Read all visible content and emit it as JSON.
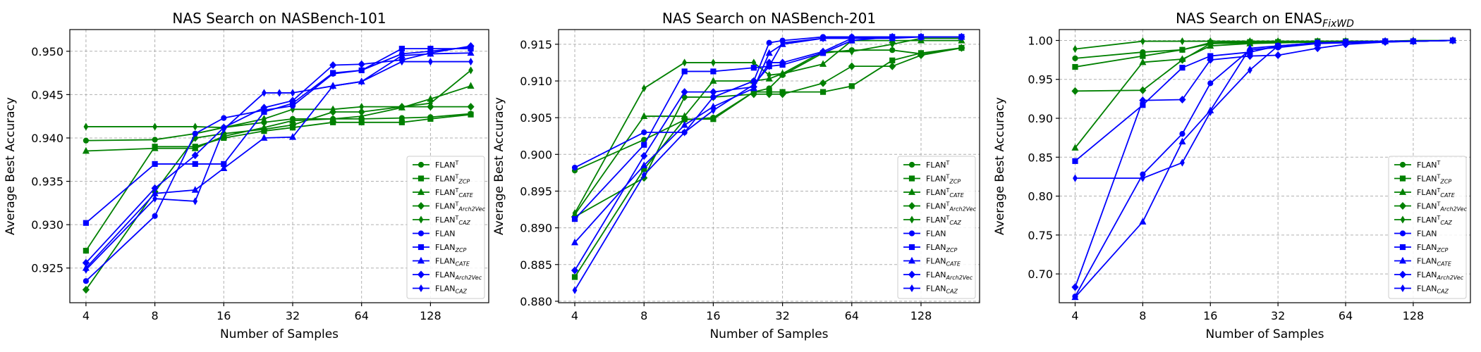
{
  "colors": {
    "green": "#008000",
    "blue": "#0000ff",
    "grid": "#b0b0b0"
  },
  "legend": [
    {
      "base": "FLAN",
      "sup": "T",
      "sub": "",
      "color": "green",
      "marker": "circle"
    },
    {
      "base": "FLAN",
      "sup": "T",
      "sub": "ZCP",
      "color": "green",
      "marker": "square"
    },
    {
      "base": "FLAN",
      "sup": "T",
      "sub": "CATE",
      "color": "green",
      "marker": "triangle"
    },
    {
      "base": "FLAN",
      "sup": "T",
      "sub": "Arch2Vec",
      "color": "green",
      "marker": "diamond"
    },
    {
      "base": "FLAN",
      "sup": "T",
      "sub": "CAZ",
      "color": "green",
      "marker": "thin-diamond"
    },
    {
      "base": "FLAN",
      "sup": "",
      "sub": "",
      "color": "blue",
      "marker": "circle"
    },
    {
      "base": "FLAN",
      "sup": "",
      "sub": "ZCP",
      "color": "blue",
      "marker": "square"
    },
    {
      "base": "FLAN",
      "sup": "",
      "sub": "CATE",
      "color": "blue",
      "marker": "triangle"
    },
    {
      "base": "FLAN",
      "sup": "",
      "sub": "Arch2Vec",
      "color": "blue",
      "marker": "diamond"
    },
    {
      "base": "FLAN",
      "sup": "",
      "sub": "CAZ",
      "color": "blue",
      "marker": "thin-diamond"
    }
  ],
  "chart_data": [
    {
      "type": "line",
      "title": "NAS Search on NASBench-101",
      "title_sub": "",
      "xlabel": "Number of Samples",
      "ylabel": "Average Best Accuracy",
      "x_scale": "log2",
      "xlim": [
        3.4,
        230
      ],
      "ylim": [
        0.921,
        0.9525
      ],
      "xticks": [
        4,
        8,
        16,
        32,
        64,
        128
      ],
      "xtick_labels": [
        "4",
        "8",
        "16",
        "32",
        "64",
        "128"
      ],
      "yticks": [
        0.925,
        0.93,
        0.935,
        0.94,
        0.945,
        0.95
      ],
      "ytick_labels": [
        "0.925",
        "0.930",
        "0.935",
        "0.940",
        "0.945",
        "0.950"
      ],
      "grid": true,
      "legend_position": "lower-right",
      "series": [
        {
          "x": [
            4,
            8,
            12,
            16,
            24,
            32,
            48,
            64,
            96,
            128,
            192
          ],
          "y": [
            0.9397,
            0.9398,
            0.9405,
            0.9412,
            0.9418,
            0.9422,
            0.9422,
            0.9422,
            0.9423,
            0.9424,
            0.9428
          ]
        },
        {
          "x": [
            4,
            8,
            12,
            16,
            24,
            32,
            48,
            64,
            96,
            128,
            192
          ],
          "y": [
            0.927,
            0.939,
            0.939,
            0.94,
            0.9408,
            0.9412,
            0.9418,
            0.9418,
            0.9418,
            0.9422,
            0.9427
          ]
        },
        {
          "x": [
            4,
            8,
            12,
            16,
            24,
            32,
            48,
            64,
            96,
            128,
            192
          ],
          "y": [
            0.9385,
            0.9388,
            0.9388,
            0.9402,
            0.9412,
            0.942,
            0.9422,
            0.9425,
            0.9435,
            0.9445,
            0.946
          ]
        },
        {
          "x": [
            4,
            8,
            12,
            16,
            24,
            32,
            48,
            64,
            96,
            128,
            192
          ],
          "y": [
            0.9225,
            0.9338,
            0.94,
            0.9405,
            0.941,
            0.9415,
            0.943,
            0.943,
            0.9436,
            0.9436,
            0.9436
          ]
        },
        {
          "x": [
            4,
            8,
            12,
            16,
            24,
            32,
            48,
            64,
            96,
            128,
            192
          ],
          "y": [
            0.9413,
            0.9413,
            0.9413,
            0.9412,
            0.9422,
            0.9433,
            0.9433,
            0.9436,
            0.9436,
            0.944,
            0.9478
          ]
        },
        {
          "x": [
            4,
            8,
            12,
            16,
            24,
            32,
            48,
            64,
            96,
            128,
            192
          ],
          "y": [
            0.9235,
            0.931,
            0.9405,
            0.9423,
            0.9432,
            0.9437,
            0.9474,
            0.9478,
            0.9497,
            0.95,
            0.9505
          ]
        },
        {
          "x": [
            4,
            8,
            12,
            16,
            24,
            32,
            48,
            64,
            96,
            128,
            192
          ],
          "y": [
            0.9302,
            0.937,
            0.937,
            0.937,
            0.943,
            0.944,
            0.9475,
            0.9478,
            0.9503,
            0.9503,
            0.9503
          ]
        },
        {
          "x": [
            4,
            8,
            12,
            16,
            24,
            32,
            48,
            64,
            96,
            128,
            192
          ],
          "y": [
            0.925,
            0.9336,
            0.934,
            0.9365,
            0.94,
            0.9401,
            0.946,
            0.9465,
            0.9495,
            0.9497,
            0.9498
          ]
        },
        {
          "x": [
            4,
            8,
            12,
            16,
            24,
            32,
            48,
            64,
            96,
            128,
            192
          ],
          "y": [
            0.9256,
            0.9342,
            0.938,
            0.9412,
            0.9435,
            0.9443,
            0.9484,
            0.9485,
            0.949,
            0.9498,
            0.9506
          ]
        },
        {
          "x": [
            4,
            8,
            12,
            16,
            24,
            28,
            32,
            48,
            64,
            96,
            128,
            192
          ],
          "y": [
            0.9248,
            0.933,
            0.9327,
            0.941,
            0.9452,
            0.9452,
            0.9452,
            0.946,
            0.9465,
            0.9488,
            0.9488,
            0.9488
          ]
        }
      ]
    },
    {
      "type": "line",
      "title": "NAS Search on NASBench-201",
      "title_sub": "",
      "xlabel": "Number of Samples",
      "ylabel": "Average Best Accuracy",
      "x_scale": "log2",
      "xlim": [
        3.4,
        230
      ],
      "ylim": [
        0.8798,
        0.917
      ],
      "xticks": [
        4,
        8,
        16,
        32,
        64,
        128
      ],
      "xtick_labels": [
        "4",
        "8",
        "16",
        "32",
        "64",
        "128"
      ],
      "yticks": [
        0.88,
        0.885,
        0.89,
        0.895,
        0.9,
        0.905,
        0.91,
        0.915
      ],
      "ytick_labels": [
        "0.880",
        "0.885",
        "0.890",
        "0.895",
        "0.900",
        "0.905",
        "0.910",
        "0.915"
      ],
      "grid": true,
      "legend_position": "lower-right",
      "series": [
        {
          "x": [
            4,
            8,
            12,
            16,
            24,
            28,
            32,
            48,
            64,
            96,
            128,
            192
          ],
          "y": [
            0.8978,
            0.902,
            0.9047,
            0.905,
            0.9085,
            0.909,
            0.9108,
            0.9138,
            0.9142,
            0.9142,
            0.9137,
            0.9145
          ]
        },
        {
          "x": [
            4,
            8,
            12,
            16,
            24,
            28,
            32,
            48,
            64,
            96,
            128,
            192
          ],
          "y": [
            0.8833,
            0.898,
            0.9048,
            0.9048,
            0.9085,
            0.9085,
            0.9085,
            0.9085,
            0.9093,
            0.9128,
            0.9138,
            0.9145
          ]
        },
        {
          "x": [
            4,
            8,
            12,
            16,
            24,
            28,
            32,
            48,
            64,
            96,
            128,
            192
          ],
          "y": [
            0.8918,
            0.9052,
            0.9052,
            0.91,
            0.91,
            0.9103,
            0.911,
            0.9123,
            0.9155,
            0.9155,
            0.9155,
            0.9155
          ]
        },
        {
          "x": [
            4,
            8,
            12,
            16,
            24,
            28,
            32,
            48,
            64,
            96,
            128,
            192
          ],
          "y": [
            0.8915,
            0.8968,
            0.9078,
            0.9078,
            0.9082,
            0.9082,
            0.9082,
            0.9097,
            0.912,
            0.912,
            0.9135,
            0.9145
          ]
        },
        {
          "x": [
            4,
            8,
            12,
            16,
            24,
            28,
            32,
            48,
            64,
            96,
            128,
            192
          ],
          "y": [
            0.892,
            0.909,
            0.9125,
            0.9125,
            0.9125,
            0.9108,
            0.911,
            0.914,
            0.914,
            0.915,
            0.9158,
            0.9158
          ]
        },
        {
          "x": [
            4,
            8,
            12,
            16,
            24,
            28,
            32,
            48,
            64,
            96,
            128,
            192
          ],
          "y": [
            0.8982,
            0.903,
            0.903,
            0.9078,
            0.91,
            0.9152,
            0.9155,
            0.916,
            0.916,
            0.916,
            0.916,
            0.916
          ]
        },
        {
          "x": [
            4,
            8,
            12,
            16,
            24,
            28,
            32,
            48,
            64,
            96,
            128,
            192
          ],
          "y": [
            0.8912,
            0.9013,
            0.9113,
            0.9113,
            0.9118,
            0.912,
            0.9122,
            0.9138,
            0.9155,
            0.916,
            0.916,
            0.916
          ]
        },
        {
          "x": [
            4,
            8,
            12,
            16,
            24,
            28,
            32,
            48,
            64,
            96,
            128,
            192
          ],
          "y": [
            0.888,
            0.8985,
            0.904,
            0.9065,
            0.909,
            0.9138,
            0.915,
            0.9158,
            0.9158,
            0.9158,
            0.916,
            0.916
          ]
        },
        {
          "x": [
            4,
            8,
            12,
            16,
            24,
            28,
            32,
            48,
            64,
            96,
            128,
            192
          ],
          "y": [
            0.8842,
            0.8998,
            0.9085,
            0.9085,
            0.9092,
            0.9125,
            0.9125,
            0.914,
            0.9158,
            0.916,
            0.916,
            0.916
          ]
        },
        {
          "x": [
            4,
            8,
            12,
            16,
            24,
            28,
            32,
            48,
            64,
            96,
            128,
            192
          ],
          "y": [
            0.8815,
            0.8972,
            0.903,
            0.906,
            0.9095,
            0.912,
            0.9152,
            0.9158,
            0.916,
            0.916,
            0.916,
            0.916
          ]
        }
      ]
    },
    {
      "type": "line",
      "title": "NAS Search on ENAS",
      "title_sub": "FixWD",
      "xlabel": "Number of Samples",
      "ylabel": "Average Best Accuracy",
      "x_scale": "log2",
      "xlim": [
        3.4,
        230
      ],
      "ylim": [
        0.663,
        1.014
      ],
      "xticks": [
        4,
        8,
        16,
        32,
        64,
        128
      ],
      "xtick_labels": [
        "4",
        "8",
        "16",
        "32",
        "64",
        "128"
      ],
      "yticks": [
        0.7,
        0.75,
        0.8,
        0.85,
        0.9,
        0.95,
        1.0
      ],
      "ytick_labels": [
        "0.70",
        "0.75",
        "0.80",
        "0.85",
        "0.90",
        "0.95",
        "1.00"
      ],
      "grid": true,
      "legend_position": "lower-right",
      "series": [
        {
          "x": [
            4,
            8,
            12,
            16,
            24,
            32,
            48,
            64,
            96,
            128,
            192
          ],
          "y": [
            0.977,
            0.985,
            0.988,
            0.996,
            0.997,
            0.998,
            0.998,
            0.999,
            0.999,
            0.999,
            1.0
          ]
        },
        {
          "x": [
            4,
            8,
            12,
            16,
            24,
            32,
            48,
            64,
            96,
            128,
            192
          ],
          "y": [
            0.966,
            0.98,
            0.988,
            0.997,
            0.998,
            0.998,
            0.999,
            0.999,
            0.999,
            0.999,
            1.0
          ]
        },
        {
          "x": [
            4,
            8,
            12,
            16,
            24,
            32,
            48,
            64,
            96,
            128,
            192
          ],
          "y": [
            0.862,
            0.972,
            0.976,
            0.993,
            0.996,
            0.997,
            0.998,
            0.998,
            0.999,
            0.999,
            1.0
          ]
        },
        {
          "x": [
            4,
            8,
            12,
            16,
            24,
            32,
            48,
            64,
            96,
            128,
            192
          ],
          "y": [
            0.935,
            0.936,
            0.975,
            0.996,
            0.997,
            0.998,
            0.998,
            0.999,
            0.999,
            0.999,
            1.0
          ]
        },
        {
          "x": [
            4,
            8,
            12,
            16,
            24,
            32,
            48,
            64,
            96,
            128,
            192
          ],
          "y": [
            0.989,
            0.999,
            0.999,
            0.999,
            0.999,
            0.999,
            0.999,
            0.999,
            0.999,
            1.0,
            1.0
          ]
        },
        {
          "x": [
            4,
            8,
            12,
            16,
            24,
            32,
            48,
            64,
            96,
            128,
            192
          ],
          "y": [
            0.671,
            0.828,
            0.88,
            0.945,
            0.988,
            0.991,
            0.996,
            0.997,
            0.998,
            0.999,
            1.0
          ]
        },
        {
          "x": [
            4,
            8,
            12,
            16,
            24,
            32,
            48,
            64,
            96,
            128,
            192
          ],
          "y": [
            0.845,
            0.917,
            0.965,
            0.98,
            0.985,
            0.993,
            0.997,
            0.998,
            0.999,
            0.999,
            1.0
          ]
        },
        {
          "x": [
            4,
            8,
            12,
            16,
            24,
            32,
            48,
            64,
            96,
            128,
            192
          ],
          "y": [
            0.67,
            0.767,
            0.87,
            0.91,
            0.99,
            0.993,
            0.996,
            0.998,
            0.999,
            0.999,
            1.0
          ]
        },
        {
          "x": [
            4,
            8,
            12,
            16,
            24,
            32,
            48,
            64,
            96,
            128,
            192
          ],
          "y": [
            0.683,
            0.923,
            0.924,
            0.975,
            0.98,
            0.981,
            0.99,
            0.995,
            0.998,
            0.999,
            1.0
          ]
        },
        {
          "x": [
            4,
            8,
            12,
            16,
            24,
            32,
            48,
            64,
            96,
            128,
            192
          ],
          "y": [
            0.823,
            0.823,
            0.843,
            0.908,
            0.962,
            0.993,
            0.997,
            0.997,
            0.999,
            0.999,
            1.0
          ]
        }
      ]
    }
  ]
}
